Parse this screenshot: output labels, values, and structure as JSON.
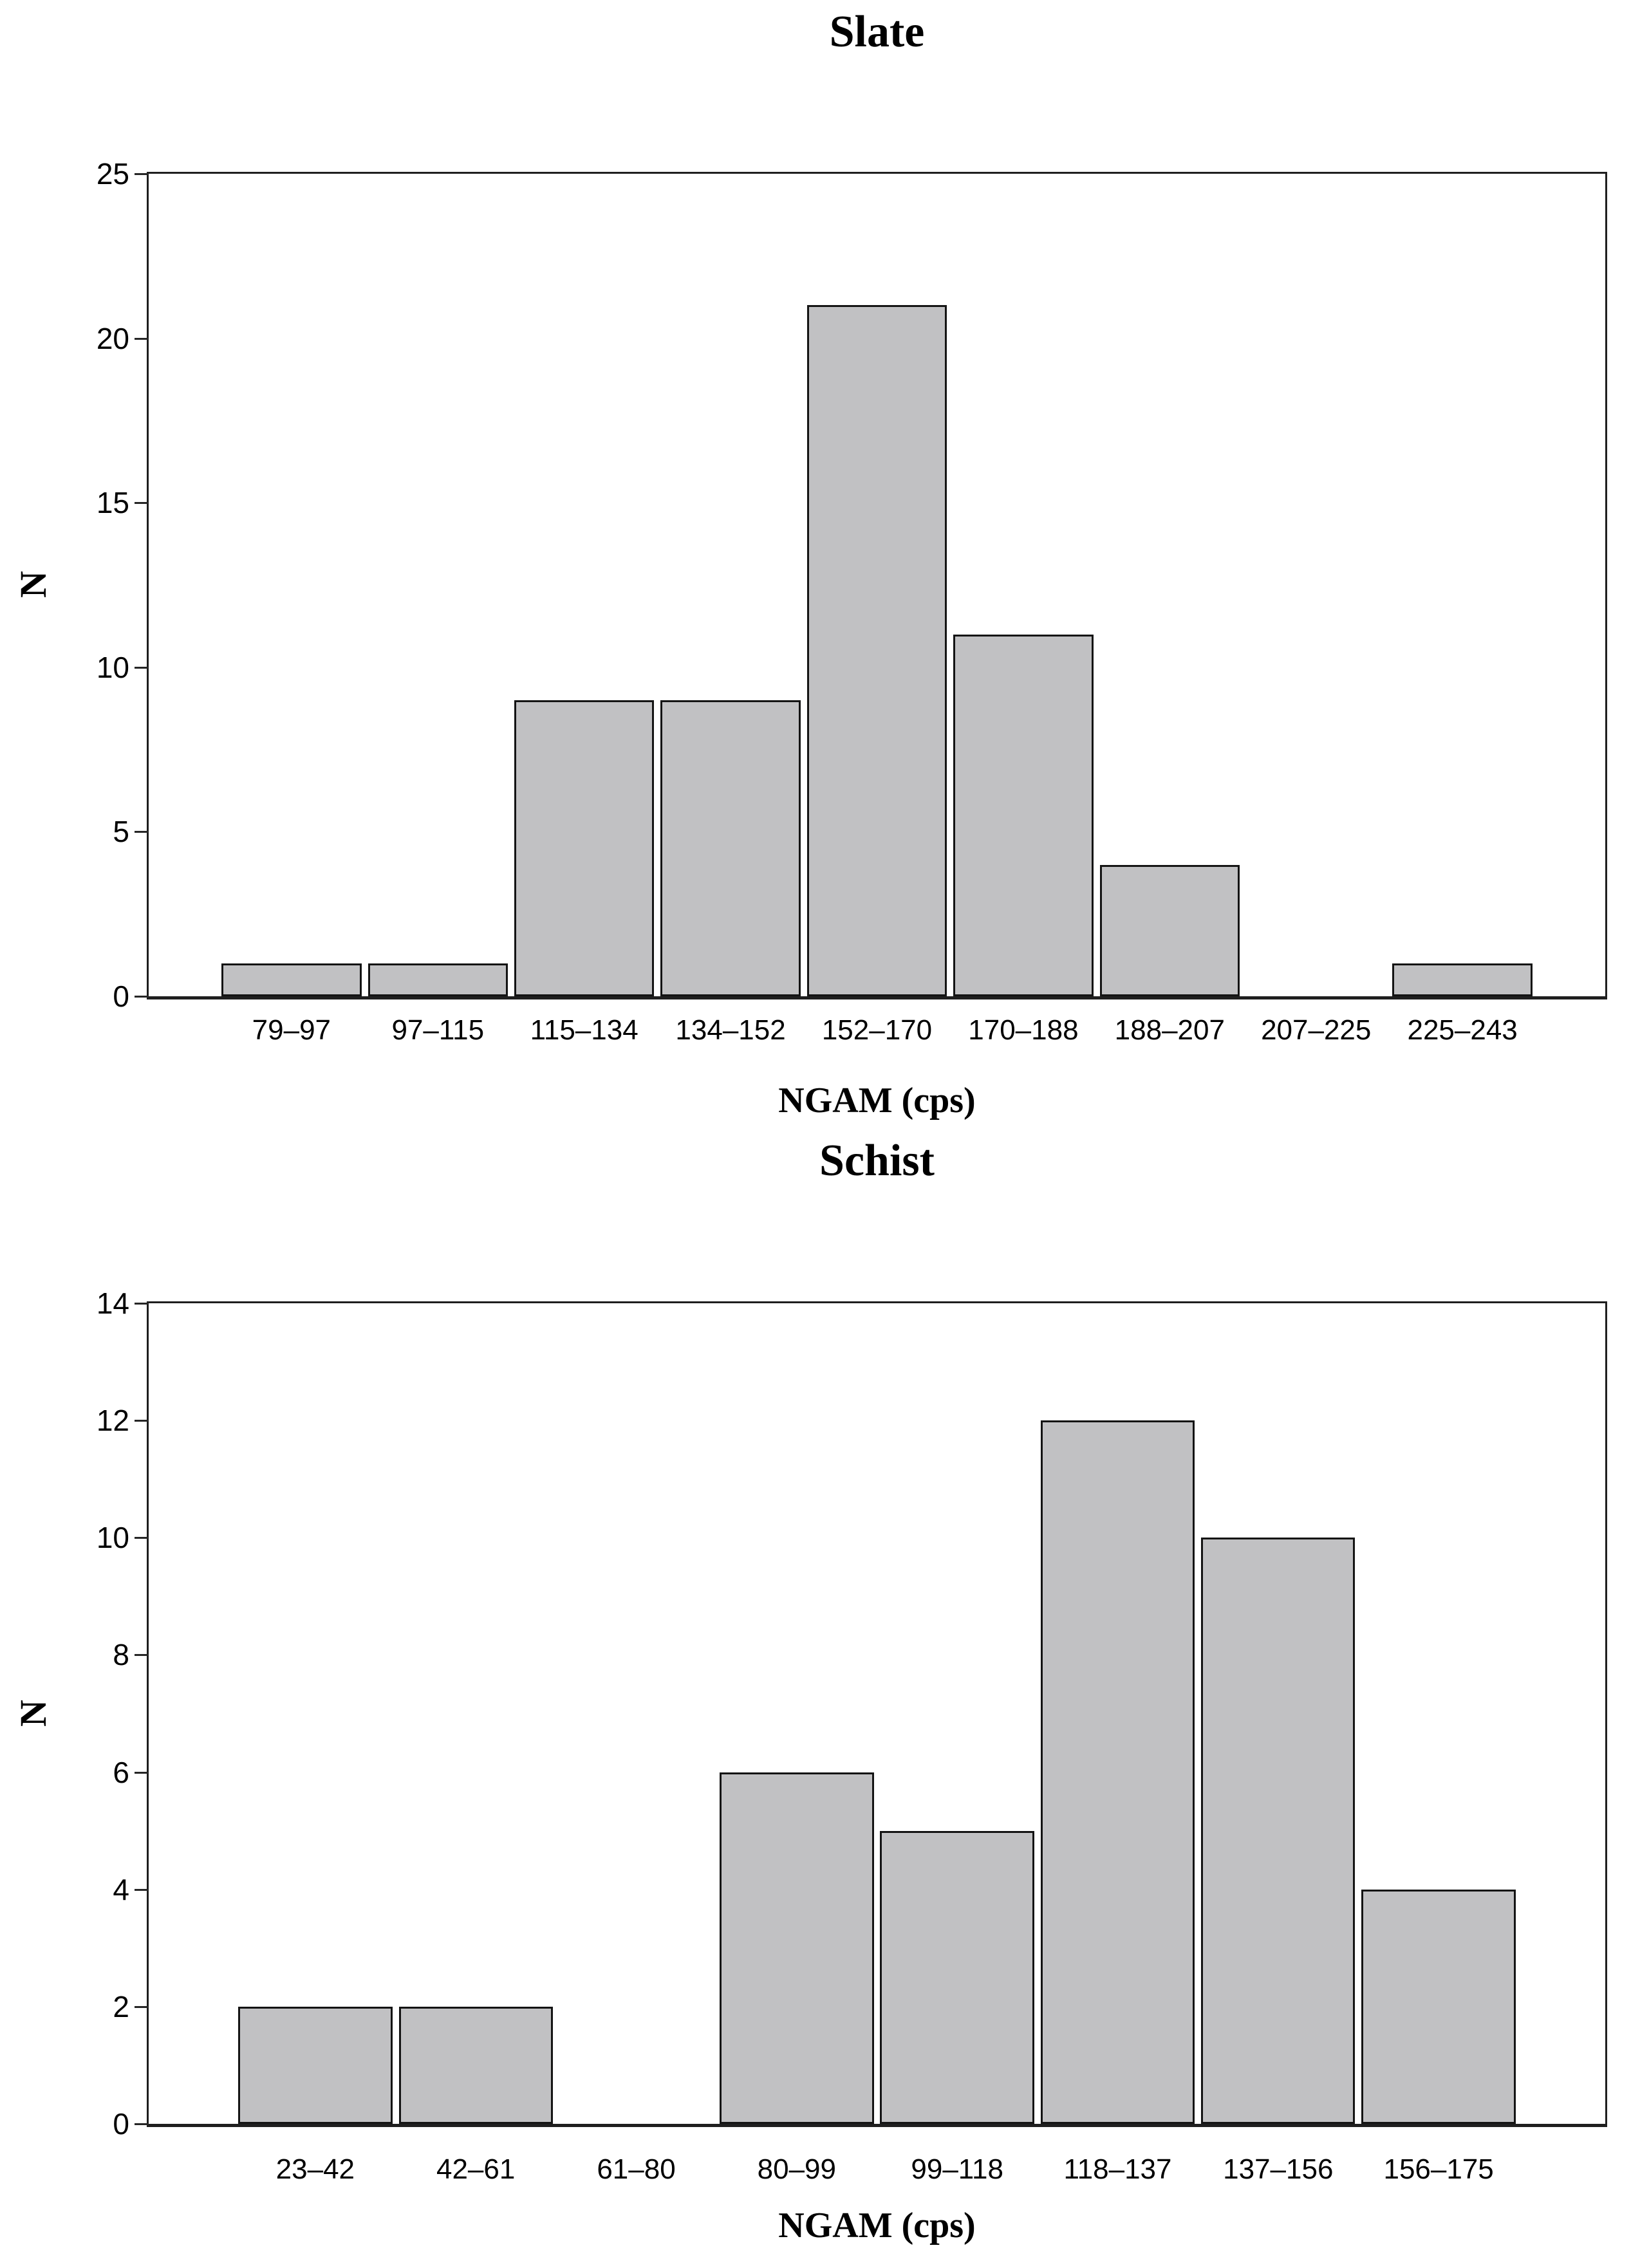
{
  "figure": {
    "background": "#ffffff",
    "text_color": "#000000",
    "axis_color": "#1f1f1f"
  },
  "chart_data": [
    {
      "type": "bar",
      "title": "Slate",
      "xlabel": "NGAM (cps)",
      "ylabel": "N",
      "categories": [
        "79–97",
        "97–115",
        "115–134",
        "134–152",
        "152–170",
        "170–188",
        "188–207",
        "207–225",
        "225–243"
      ],
      "values": [
        1,
        1,
        9,
        9,
        21,
        11,
        4,
        0,
        1
      ],
      "ylim": [
        0,
        25
      ],
      "ytick_step": 5,
      "yticks": [
        0,
        5,
        10,
        15,
        20,
        25
      ],
      "grid": false,
      "legend": "none",
      "bar_fill": "#c1c1c3",
      "bar_border": "#141414"
    },
    {
      "type": "bar",
      "title": "Schist",
      "xlabel": "NGAM (cps)",
      "ylabel": "N",
      "categories": [
        "23–42",
        "42–61",
        "61–80",
        "80–99",
        "99–118",
        "118–137",
        "137–156",
        "156–175"
      ],
      "values": [
        2,
        2,
        0,
        6,
        5,
        12,
        10,
        4
      ],
      "ylim": [
        0,
        14
      ],
      "ytick_step": 2,
      "yticks": [
        0,
        2,
        4,
        6,
        8,
        10,
        12,
        14
      ],
      "grid": false,
      "legend": "none",
      "bar_fill": "#c1c1c3",
      "bar_border": "#141414"
    }
  ]
}
